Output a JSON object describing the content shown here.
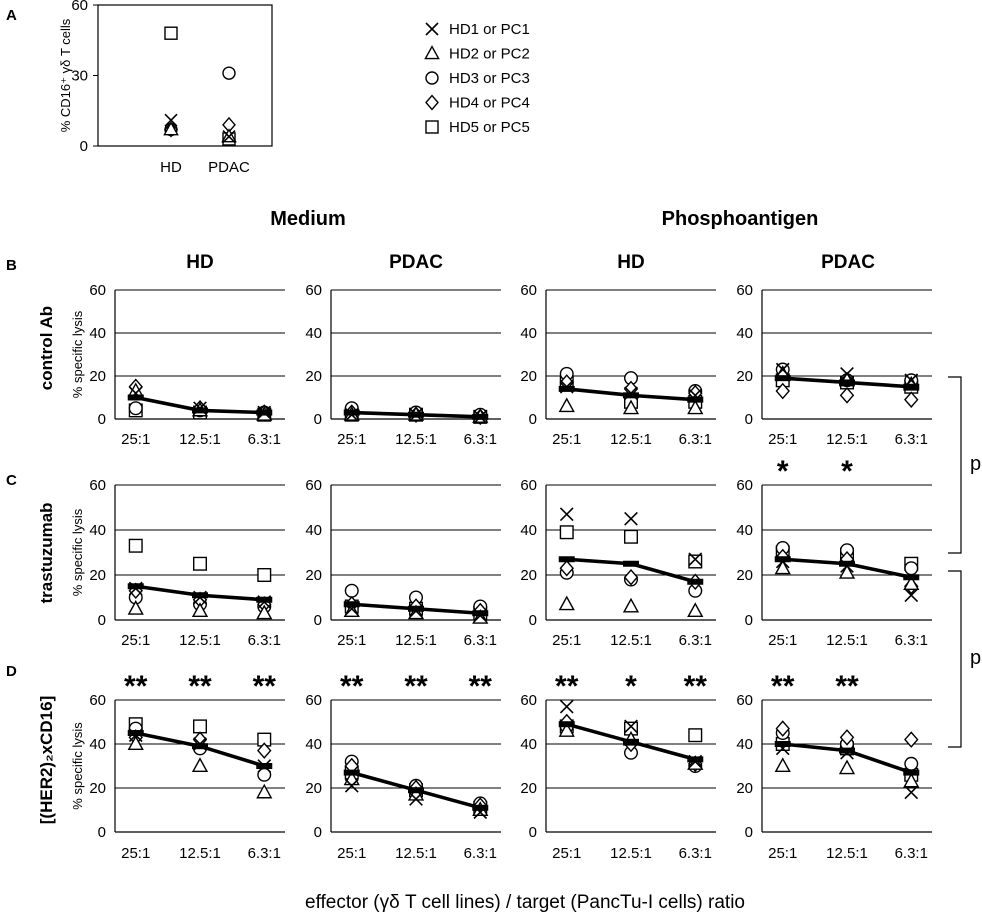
{
  "figure": {
    "x_title": "effector (γδ T cell lines) / target (PancTu-I cells) ratio",
    "condition_headers": [
      "Medium",
      "Phosphoantigen"
    ],
    "column_headers": [
      "HD",
      "PDAC",
      "HD",
      "PDAC"
    ],
    "row_labels": [
      "control Ab",
      "trastuzumab",
      "[(HER2)₂xCD16]"
    ],
    "panel_letters": [
      "A",
      "B",
      "C",
      "D"
    ],
    "bracket_label": "p",
    "colors": {
      "ink": "#000000",
      "background": "#ffffff",
      "gridline": "#000000"
    }
  },
  "legend": {
    "entries": [
      {
        "label": "HD1 or PC1",
        "marker": "x-icon"
      },
      {
        "label": "HD2 or PC2",
        "marker": "triangle-icon"
      },
      {
        "label": "HD3 or PC3",
        "marker": "circle-icon"
      },
      {
        "label": "HD4 or PC4",
        "marker": "diamond-icon"
      },
      {
        "label": "HD5 or PC5",
        "marker": "square-icon"
      }
    ]
  },
  "chart_data": [
    {
      "panel": "A",
      "type": "scatter",
      "ylabel": "% CD16⁺ γδ T cells",
      "yticks": [
        "0",
        "30",
        "60"
      ],
      "ylim": [
        0,
        60
      ],
      "categories": [
        "HD",
        "PDAC"
      ],
      "series": [
        {
          "name": "HD1 or PC1",
          "marker": "x",
          "values": [
            11,
            4
          ]
        },
        {
          "name": "HD2 or PC2",
          "marker": "triangle",
          "values": [
            7,
            4
          ]
        },
        {
          "name": "HD3 or PC3",
          "marker": "circle",
          "values": [
            7,
            31
          ]
        },
        {
          "name": "HD4 or PC4",
          "marker": "diamond",
          "values": [
            7,
            9
          ]
        },
        {
          "name": "HD5 or PC5",
          "marker": "square",
          "values": [
            48,
            3
          ]
        }
      ]
    },
    {
      "panel": "B",
      "row": "control Ab",
      "condition": "Medium",
      "group": "HD",
      "type": "scatter",
      "ylabel": "% specific lysis",
      "yticks": [
        "0",
        "20",
        "40",
        "60"
      ],
      "ylim": [
        0,
        60
      ],
      "categories": [
        "25:1",
        "12.5:1",
        "6.3:1"
      ],
      "mean": [
        10,
        4,
        3
      ],
      "points": {
        "x": [
          12,
          5,
          3
        ],
        "triangle": [
          13,
          4,
          2
        ],
        "circle": [
          5,
          4,
          3
        ],
        "diamond": [
          15,
          5,
          3
        ],
        "square": [
          4,
          3,
          2
        ]
      },
      "significance": [
        "",
        "",
        ""
      ]
    },
    {
      "panel": "B",
      "row": "control Ab",
      "condition": "Medium",
      "group": "PDAC",
      "type": "scatter",
      "ylabel": "",
      "yticks": [
        "0",
        "20",
        "40",
        "60"
      ],
      "ylim": [
        0,
        60
      ],
      "categories": [
        "25:1",
        "12.5:1",
        "6.3:1"
      ],
      "mean": [
        3,
        2,
        1
      ],
      "points": {
        "x": [
          2,
          2,
          1
        ],
        "triangle": [
          2,
          2,
          1
        ],
        "circle": [
          5,
          3,
          2
        ],
        "diamond": [
          3,
          2,
          1
        ],
        "square": [
          2,
          2,
          1
        ]
      },
      "significance": [
        "",
        "",
        ""
      ]
    },
    {
      "panel": "B",
      "row": "control Ab",
      "condition": "Phosphoantigen",
      "group": "HD",
      "type": "scatter",
      "ylabel": "",
      "yticks": [
        "0",
        "20",
        "40",
        "60"
      ],
      "ylim": [
        0,
        60
      ],
      "categories": [
        "25:1",
        "12.5:1",
        "6.3:1"
      ],
      "mean": [
        14,
        11,
        9
      ],
      "points": {
        "x": [
          15,
          12,
          11
        ],
        "triangle": [
          6,
          5,
          5
        ],
        "circle": [
          21,
          19,
          13
        ],
        "diamond": [
          17,
          14,
          12
        ],
        "square": [
          17,
          8,
          8
        ]
      },
      "significance": [
        "",
        "",
        ""
      ]
    },
    {
      "panel": "B",
      "row": "control Ab",
      "condition": "Phosphoantigen",
      "group": "PDAC",
      "type": "scatter",
      "ylabel": "",
      "yticks": [
        "0",
        "20",
        "40",
        "60"
      ],
      "ylim": [
        0,
        60
      ],
      "categories": [
        "25:1",
        "12.5:1",
        "6.3:1"
      ],
      "mean": [
        19,
        17,
        15
      ],
      "points": {
        "x": [
          23,
          21,
          18
        ],
        "triangle": [
          21,
          18,
          16
        ],
        "circle": [
          23,
          18,
          18
        ],
        "diamond": [
          13,
          11,
          9
        ],
        "square": [
          18,
          17,
          15
        ]
      },
      "significance": [
        "",
        "",
        ""
      ]
    },
    {
      "panel": "C",
      "row": "trastuzumab",
      "condition": "Medium",
      "group": "HD",
      "type": "scatter",
      "ylabel": "% specific lysis",
      "yticks": [
        "0",
        "20",
        "40",
        "60"
      ],
      "ylim": [
        0,
        60
      ],
      "categories": [
        "25:1",
        "12.5:1",
        "6.3:1"
      ],
      "mean": [
        15,
        11,
        9
      ],
      "points": {
        "x": [
          14,
          10,
          8
        ],
        "triangle": [
          5,
          4,
          3
        ],
        "circle": [
          10,
          7,
          6
        ],
        "diamond": [
          13,
          9,
          7
        ],
        "square": [
          33,
          25,
          20
        ]
      },
      "significance": [
        "",
        "",
        ""
      ]
    },
    {
      "panel": "C",
      "row": "trastuzumab",
      "condition": "Medium",
      "group": "PDAC",
      "type": "scatter",
      "ylabel": "",
      "yticks": [
        "0",
        "20",
        "40",
        "60"
      ],
      "ylim": [
        0,
        60
      ],
      "categories": [
        "25:1",
        "12.5:1",
        "6.3:1"
      ],
      "mean": [
        7,
        5,
        3
      ],
      "points": {
        "x": [
          5,
          4,
          2
        ],
        "triangle": [
          4,
          3,
          1
        ],
        "circle": [
          13,
          10,
          6
        ],
        "diamond": [
          7,
          6,
          4
        ],
        "square": [
          6,
          5,
          3
        ]
      },
      "significance": [
        "",
        "",
        ""
      ]
    },
    {
      "panel": "C",
      "row": "trastuzumab",
      "condition": "Phosphoantigen",
      "group": "HD",
      "type": "scatter",
      "ylabel": "",
      "yticks": [
        "0",
        "20",
        "40",
        "60"
      ],
      "ylim": [
        0,
        60
      ],
      "categories": [
        "25:1",
        "12.5:1",
        "6.3:1"
      ],
      "mean": [
        27,
        25,
        17
      ],
      "points": {
        "x": [
          47,
          45,
          27
        ],
        "triangle": [
          7,
          6,
          4
        ],
        "circle": [
          21,
          18,
          13
        ],
        "diamond": [
          23,
          19,
          17
        ],
        "square": [
          39,
          37,
          26
        ]
      },
      "significance": [
        "",
        "",
        ""
      ]
    },
    {
      "panel": "C",
      "row": "trastuzumab",
      "condition": "Phosphoantigen",
      "group": "PDAC",
      "type": "scatter",
      "ylabel": "",
      "yticks": [
        "0",
        "20",
        "40",
        "60"
      ],
      "ylim": [
        0,
        60
      ],
      "categories": [
        "25:1",
        "12.5:1",
        "6.3:1"
      ],
      "mean": [
        27,
        25,
        19
      ],
      "points": {
        "x": [
          26,
          24,
          11
        ],
        "triangle": [
          23,
          21,
          16
        ],
        "circle": [
          32,
          31,
          23
        ],
        "diamond": [
          28,
          27,
          15
        ],
        "square": [
          30,
          29,
          25
        ]
      },
      "significance": [
        "*",
        "*",
        ""
      ]
    },
    {
      "panel": "D",
      "row": "[(HER2)₂xCD16]",
      "condition": "Medium",
      "group": "HD",
      "type": "scatter",
      "ylabel": "% specific lysis",
      "yticks": [
        "0",
        "20",
        "40",
        "60"
      ],
      "ylim": [
        0,
        60
      ],
      "categories": [
        "25:1",
        "12.5:1",
        "6.3:1"
      ],
      "mean": [
        45,
        39,
        30
      ],
      "points": {
        "x": [
          44,
          40,
          30
        ],
        "triangle": [
          40,
          30,
          18
        ],
        "circle": [
          47,
          38,
          26
        ],
        "diamond": [
          43,
          42,
          37
        ],
        "square": [
          49,
          48,
          42
        ]
      },
      "significance": [
        "**",
        "**",
        "**"
      ]
    },
    {
      "panel": "D",
      "row": "[(HER2)₂xCD16]",
      "condition": "Medium",
      "group": "PDAC",
      "type": "scatter",
      "ylabel": "",
      "yticks": [
        "0",
        "20",
        "40",
        "60"
      ],
      "ylim": [
        0,
        60
      ],
      "categories": [
        "25:1",
        "12.5:1",
        "6.3:1"
      ],
      "mean": [
        27,
        19,
        11
      ],
      "points": {
        "x": [
          21,
          15,
          9
        ],
        "triangle": [
          24,
          17,
          10
        ],
        "circle": [
          32,
          21,
          13
        ],
        "diamond": [
          30,
          20,
          12
        ],
        "square": [
          27,
          19,
          11
        ]
      },
      "significance": [
        "**",
        "**",
        "**"
      ]
    },
    {
      "panel": "D",
      "row": "[(HER2)₂xCD16]",
      "condition": "Phosphoantigen",
      "group": "HD",
      "type": "scatter",
      "ylabel": "",
      "yticks": [
        "0",
        "20",
        "40",
        "60"
      ],
      "ylim": [
        0,
        60
      ],
      "categories": [
        "25:1",
        "12.5:1",
        "6.3:1"
      ],
      "mean": [
        49,
        41,
        33
      ],
      "points": {
        "x": [
          57,
          48,
          32
        ],
        "triangle": [
          46,
          42,
          31
        ],
        "circle": [
          48,
          36,
          30
        ],
        "diamond": [
          50,
          40,
          31
        ],
        "square": [
          48,
          47,
          44
        ]
      },
      "significance": [
        "**",
        "*",
        "**"
      ]
    },
    {
      "panel": "D",
      "row": "[(HER2)₂xCD16]",
      "condition": "Phosphoantigen",
      "group": "PDAC",
      "type": "scatter",
      "ylabel": "",
      "yticks": [
        "0",
        "20",
        "40",
        "60"
      ],
      "ylim": [
        0,
        60
      ],
      "categories": [
        "25:1",
        "12.5:1",
        "6.3:1"
      ],
      "mean": [
        40,
        37,
        27
      ],
      "points": {
        "x": [
          38,
          36,
          18
        ],
        "triangle": [
          30,
          29,
          23
        ],
        "circle": [
          45,
          40,
          31
        ],
        "diamond": [
          47,
          43,
          42
        ],
        "square": [
          40,
          38,
          26
        ]
      },
      "significance": [
        "**",
        "**",
        ""
      ]
    }
  ]
}
